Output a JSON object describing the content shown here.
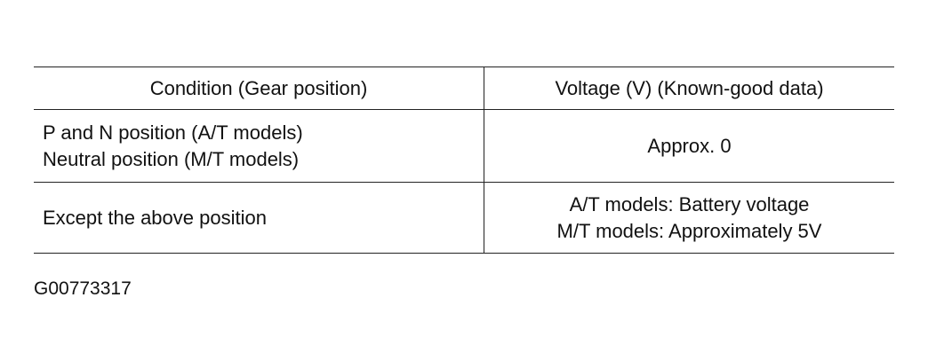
{
  "table": {
    "headers": [
      "Condition (Gear position)",
      "Voltage (V) (Known-good data)"
    ],
    "rows": [
      {
        "condition": [
          "P and N position (A/T models)",
          "Neutral position (M/T models)"
        ],
        "voltage": [
          "Approx. 0"
        ]
      },
      {
        "condition": [
          "Except the above position"
        ],
        "voltage": [
          "A/T models: Battery voltage",
          "M/T models: Approximately 5V"
        ]
      }
    ]
  },
  "figure_id": "G00773317"
}
